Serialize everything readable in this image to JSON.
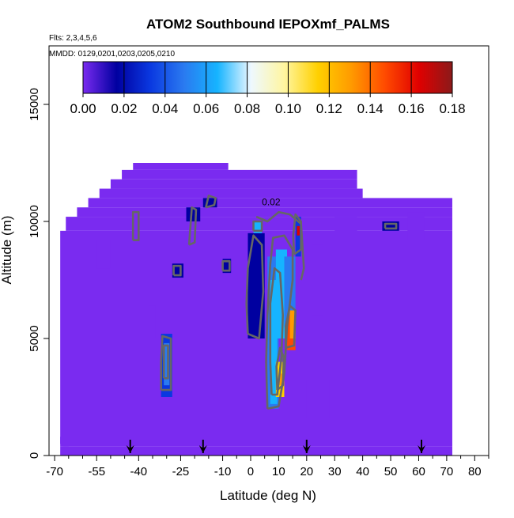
{
  "chart_data": {
    "type": "heatmap",
    "title": "ATOM2 Southbound IEPOXmf_PALMS",
    "flights_note": "Flts: 2,3,4,5,6",
    "dates_note": "MMDD: 0129,0201,0203,0205,0210",
    "xlabel": "Latitude (deg N)",
    "ylabel": "Altitude (m)",
    "xlim": [
      -72,
      85
    ],
    "ylim": [
      0,
      17500
    ],
    "x_ticks": [
      -70,
      -55,
      -40,
      -25,
      -10,
      0,
      10,
      20,
      30,
      40,
      50,
      60,
      70,
      80
    ],
    "x_tick_labels": [
      "-70",
      "-55",
      "-40",
      "-25",
      "-10",
      "0",
      "10",
      "20",
      "30",
      "40",
      "50",
      "60",
      "70",
      "80"
    ],
    "y_ticks": [
      0,
      5000,
      10000,
      15000
    ],
    "y_tick_labels": [
      "0",
      "5000",
      "10000",
      "15000"
    ],
    "colorbar": {
      "min": 0.0,
      "max": 0.18,
      "ticks": [
        0.0,
        0.02,
        0.04,
        0.06,
        0.08,
        0.1,
        0.12,
        0.14,
        0.16,
        0.18
      ],
      "tick_labels": [
        "0.00",
        "0.02",
        "0.04",
        "0.06",
        "0.08",
        "0.10",
        "0.12",
        "0.14",
        "0.16",
        "0.18"
      ],
      "colors": [
        "#7a2bf0",
        "#0000a0",
        "#0a38e0",
        "#2a7af0",
        "#16b4ff",
        "#eef8ff",
        "#fff6a0",
        "#ffd000",
        "#ff9a00",
        "#ff4a00",
        "#e00000",
        "#8b1a1a"
      ]
    },
    "background_value": 0.0,
    "base_color": "#7a2bf0",
    "domain_bands": [
      {
        "x": [
          -68,
          72
        ],
        "y": [
          0,
          400
        ]
      },
      {
        "x": [
          -68,
          72
        ],
        "y": [
          400,
          9600
        ]
      },
      {
        "x": [
          -66,
          72
        ],
        "y": [
          9600,
          10200
        ]
      },
      {
        "x": [
          -62,
          72
        ],
        "y": [
          10200,
          10600
        ]
      },
      {
        "x": [
          -58,
          72
        ],
        "y": [
          10600,
          11000
        ]
      },
      {
        "x": [
          -54,
          40
        ],
        "y": [
          11000,
          11400
        ]
      },
      {
        "x": [
          -50,
          38
        ],
        "y": [
          11400,
          11800
        ]
      },
      {
        "x": [
          -46,
          38
        ],
        "y": [
          11800,
          12200
        ]
      },
      {
        "x": [
          -42,
          -8
        ],
        "y": [
          12200,
          12500
        ]
      }
    ],
    "cells": [
      {
        "x": [
          6,
          10
        ],
        "y": [
          2000,
          8500
        ],
        "value": 0.05
      },
      {
        "x": [
          7,
          9.5
        ],
        "y": [
          2200,
          7500
        ],
        "value": 0.07
      },
      {
        "x": [
          9,
          12
        ],
        "y": [
          2500,
          4000
        ],
        "value": 0.11
      },
      {
        "x": [
          10,
          12
        ],
        "y": [
          3000,
          3500
        ],
        "value": 0.13
      },
      {
        "x": [
          9,
          13
        ],
        "y": [
          5000,
          8800
        ],
        "value": 0.06
      },
      {
        "x": [
          12,
          16
        ],
        "y": [
          5500,
          8500
        ],
        "value": 0.05
      },
      {
        "x": [
          13,
          16
        ],
        "y": [
          4500,
          6000
        ],
        "value": 0.14
      },
      {
        "x": [
          14,
          16
        ],
        "y": [
          5000,
          6200
        ],
        "value": 0.13
      },
      {
        "x": [
          16,
          18
        ],
        "y": [
          8500,
          10200
        ],
        "value": 0.04
      },
      {
        "x": [
          16.5,
          17.5
        ],
        "y": [
          9400,
          9800
        ],
        "value": 0.16
      },
      {
        "x": [
          -1,
          5
        ],
        "y": [
          5000,
          9500
        ],
        "value": 0.02
      },
      {
        "x": [
          1,
          4
        ],
        "y": [
          9500,
          10000
        ],
        "value": 0.07
      },
      {
        "x": [
          -32,
          -28
        ],
        "y": [
          2500,
          5200
        ],
        "value": 0.03
      },
      {
        "x": [
          -31,
          -29
        ],
        "y": [
          3000,
          4800
        ],
        "value": 0.05
      },
      {
        "x": [
          -28,
          -24
        ],
        "y": [
          7600,
          8200
        ],
        "value": 0.02
      },
      {
        "x": [
          -23,
          -18
        ],
        "y": [
          10000,
          10600
        ],
        "value": 0.02
      },
      {
        "x": [
          -17,
          -12
        ],
        "y": [
          10600,
          11000
        ],
        "value": 0.02
      },
      {
        "x": [
          -10,
          -7
        ],
        "y": [
          7800,
          8400
        ],
        "value": 0.02
      },
      {
        "x": [
          47,
          53
        ],
        "y": [
          9600,
          10000
        ],
        "value": 0.02
      },
      {
        "x": [
          -67,
          -65
        ],
        "y": [
          400,
          3000
        ],
        "value": 0.01
      },
      {
        "x": [
          -68,
          -62
        ],
        "y": [
          500,
          800
        ],
        "value": 0.01
      },
      {
        "x": [
          20,
          28
        ],
        "y": [
          1600,
          3200
        ],
        "value": 0.01
      },
      {
        "x": [
          -36,
          -34
        ],
        "y": [
          5000,
          6400
        ],
        "value": 0.01
      },
      {
        "x": [
          -42,
          -40
        ],
        "y": [
          9200,
          10400
        ],
        "value": 0.01
      },
      {
        "x": [
          30,
          38
        ],
        "y": [
          9200,
          10200
        ],
        "value": 0.01
      },
      {
        "x": [
          56,
          62
        ],
        "y": [
          9200,
          10400
        ],
        "value": 0.01
      },
      {
        "x": [
          22,
          26
        ],
        "y": [
          6000,
          9000
        ],
        "value": 0.005
      },
      {
        "x": [
          -55,
          -50
        ],
        "y": [
          8000,
          9200
        ],
        "value": 0.005
      },
      {
        "x": [
          -45,
          -40
        ],
        "y": [
          6800,
          8200
        ],
        "value": 0.005
      }
    ],
    "contours": [
      {
        "points": [
          [
            6,
            2000
          ],
          [
            10,
            2100
          ],
          [
            12,
            3500
          ],
          [
            13,
            5500
          ],
          [
            15,
            7500
          ],
          [
            15,
            8800
          ],
          [
            12,
            9400
          ],
          [
            8,
            9300
          ],
          [
            7,
            8200
          ],
          [
            6,
            6000
          ],
          [
            5.5,
            4000
          ],
          [
            6,
            2000
          ]
        ]
      },
      {
        "points": [
          [
            7.5,
            2600
          ],
          [
            9.5,
            2600
          ],
          [
            11,
            4200
          ],
          [
            11.5,
            6000
          ],
          [
            10.5,
            7800
          ],
          [
            8.5,
            8000
          ],
          [
            7,
            6500
          ],
          [
            7,
            4000
          ],
          [
            7.5,
            2600
          ]
        ]
      },
      {
        "points": [
          [
            9.5,
            2800
          ],
          [
            11.5,
            3000
          ],
          [
            11.8,
            4200
          ],
          [
            10.5,
            4600
          ],
          [
            9.2,
            3800
          ],
          [
            9.5,
            2800
          ]
        ]
      },
      {
        "points": [
          [
            12.5,
            4600
          ],
          [
            15.5,
            4700
          ],
          [
            16,
            6200
          ],
          [
            14,
            6400
          ],
          [
            12.5,
            5500
          ],
          [
            12.5,
            4600
          ]
        ]
      },
      {
        "points": [
          [
            -1,
            5200
          ],
          [
            3,
            5000
          ],
          [
            4.5,
            7000
          ],
          [
            4,
            9000
          ],
          [
            1,
            9400
          ],
          [
            -1,
            8000
          ],
          [
            -1.5,
            6500
          ],
          [
            -1,
            5200
          ]
        ]
      },
      {
        "points": [
          [
            1,
            9600
          ],
          [
            4,
            9600
          ],
          [
            4,
            10000
          ],
          [
            1,
            10000
          ],
          [
            1,
            9600
          ]
        ]
      },
      {
        "points": [
          [
            15.5,
            8600
          ],
          [
            18,
            8800
          ],
          [
            18,
            10000
          ],
          [
            16,
            10300
          ],
          [
            15.2,
            9400
          ],
          [
            15.5,
            8600
          ]
        ]
      },
      {
        "points": [
          [
            -32,
            2800
          ],
          [
            -28.5,
            2800
          ],
          [
            -28.5,
            5000
          ],
          [
            -31.5,
            5100
          ],
          [
            -32,
            4000
          ],
          [
            -32,
            2800
          ]
        ]
      },
      {
        "points": [
          [
            -31,
            3300
          ],
          [
            -29.5,
            3300
          ],
          [
            -29.5,
            4700
          ],
          [
            -31,
            4700
          ],
          [
            -31,
            3300
          ]
        ]
      },
      {
        "points": [
          [
            -27.5,
            7700
          ],
          [
            -25,
            7700
          ],
          [
            -25,
            8100
          ],
          [
            -27.5,
            8100
          ],
          [
            -27.5,
            7700
          ]
        ]
      },
      {
        "points": [
          [
            -16,
            10600
          ],
          [
            -13,
            10700
          ],
          [
            -12.5,
            11000
          ],
          [
            -15,
            11100
          ],
          [
            -16,
            10600
          ]
        ]
      },
      {
        "points": [
          [
            -10,
            7900
          ],
          [
            -7.5,
            7900
          ],
          [
            -7.5,
            8300
          ],
          [
            -10,
            8300
          ],
          [
            -10,
            7900
          ]
        ]
      },
      {
        "points": [
          [
            -22,
            9000
          ],
          [
            -20,
            9100
          ],
          [
            -19.5,
            10500
          ],
          [
            -21,
            10600
          ],
          [
            -22,
            9000
          ]
        ]
      },
      {
        "points": [
          [
            -42,
            9200
          ],
          [
            -40,
            9200
          ],
          [
            -40,
            10400
          ],
          [
            -42,
            10400
          ],
          [
            -42,
            9200
          ]
        ]
      },
      {
        "points": [
          [
            2,
            10200
          ],
          [
            6,
            10000
          ],
          [
            10,
            10400
          ],
          [
            14,
            10300
          ],
          [
            18,
            9900
          ],
          [
            19,
            8000
          ],
          [
            18,
            7500
          ]
        ]
      },
      {
        "points": [
          [
            48,
            9700
          ],
          [
            52,
            9700
          ],
          [
            52,
            9900
          ],
          [
            48,
            9900
          ],
          [
            48,
            9700
          ]
        ]
      }
    ],
    "contour_label": {
      "text": "0.02",
      "x": 4,
      "y": 10700
    },
    "arrows": [
      -43,
      -17,
      20,
      61
    ]
  }
}
